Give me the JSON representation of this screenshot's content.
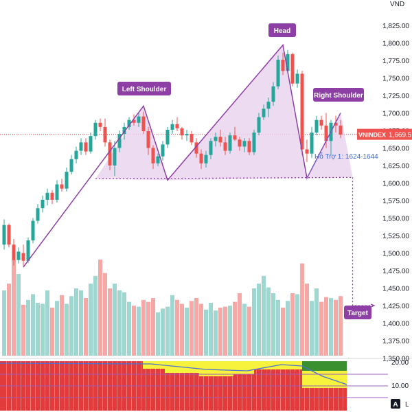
{
  "chart_data": {
    "type": "candlestick",
    "unit": "VND",
    "ticker": "VNINDEX",
    "last_price_label": "1,669.5",
    "y_ticks": [
      "1,825.00",
      "1,800.00",
      "1,775.00",
      "1,750.00",
      "1,725.00",
      "1,700.00",
      "1,675.00",
      "1,650.00",
      "1,625.00",
      "1,600.00",
      "1,575.00",
      "1,550.00",
      "1,525.00",
      "1,500.00",
      "1,475.00",
      "1,450.00",
      "1,425.00",
      "1,400.00",
      "1,375.00",
      "1,350.00"
    ],
    "ylim": [
      1350,
      1830
    ],
    "annotations": {
      "left_shoulder": "Left Shoulder",
      "head": "Head",
      "right_shoulder": "Right Shoulder",
      "target": "Target",
      "support": "Hỗ Trợ 1: 1624-1644"
    },
    "pattern": {
      "bottom": 1480,
      "left_shoulder": 1710,
      "neck_left": 1604,
      "head": 1797,
      "neck_right": 1607,
      "neckline_end": 1608,
      "target": 1423
    },
    "candles": [
      [
        1512,
        1548,
        1505,
        1540
      ],
      [
        1540,
        1542,
        1508,
        1512
      ],
      [
        1512,
        1520,
        1482,
        1490
      ],
      [
        1490,
        1508,
        1485,
        1502
      ],
      [
        1500,
        1512,
        1482,
        1489
      ],
      [
        1489,
        1522,
        1486,
        1518
      ],
      [
        1518,
        1550,
        1514,
        1546
      ],
      [
        1546,
        1570,
        1542,
        1564
      ],
      [
        1564,
        1582,
        1558,
        1576
      ],
      [
        1576,
        1592,
        1568,
        1586
      ],
      [
        1586,
        1590,
        1570,
        1576
      ],
      [
        1576,
        1604,
        1572,
        1598
      ],
      [
        1598,
        1606,
        1588,
        1592
      ],
      [
        1592,
        1622,
        1588,
        1616
      ],
      [
        1616,
        1640,
        1612,
        1634
      ],
      [
        1634,
        1652,
        1628,
        1646
      ],
      [
        1646,
        1664,
        1640,
        1658
      ],
      [
        1658,
        1664,
        1640,
        1645
      ],
      [
        1645,
        1672,
        1642,
        1667
      ],
      [
        1667,
        1690,
        1662,
        1686
      ],
      [
        1686,
        1692,
        1674,
        1680
      ],
      [
        1680,
        1692,
        1652,
        1658
      ],
      [
        1658,
        1662,
        1618,
        1625
      ],
      [
        1625,
        1660,
        1610,
        1650
      ],
      [
        1650,
        1675,
        1644,
        1670
      ],
      [
        1670,
        1686,
        1662,
        1680
      ],
      [
        1680,
        1694,
        1676,
        1690
      ],
      [
        1690,
        1698,
        1682,
        1686
      ],
      [
        1686,
        1700,
        1680,
        1695
      ],
      [
        1695,
        1702,
        1670,
        1674
      ],
      [
        1674,
        1680,
        1640,
        1650
      ],
      [
        1650,
        1654,
        1620,
        1628
      ],
      [
        1628,
        1642,
        1624,
        1638
      ],
      [
        1638,
        1660,
        1632,
        1655
      ],
      [
        1655,
        1680,
        1650,
        1676
      ],
      [
        1676,
        1690,
        1670,
        1684
      ],
      [
        1684,
        1694,
        1674,
        1678
      ],
      [
        1678,
        1680,
        1662,
        1668
      ],
      [
        1668,
        1676,
        1660,
        1670
      ],
      [
        1670,
        1674,
        1654,
        1658
      ],
      [
        1658,
        1664,
        1636,
        1642
      ],
      [
        1642,
        1648,
        1620,
        1628
      ],
      [
        1628,
        1646,
        1622,
        1640
      ],
      [
        1640,
        1664,
        1634,
        1660
      ],
      [
        1660,
        1672,
        1652,
        1666
      ],
      [
        1666,
        1676,
        1652,
        1658
      ],
      [
        1658,
        1666,
        1640,
        1646
      ],
      [
        1646,
        1672,
        1642,
        1668
      ],
      [
        1668,
        1680,
        1660,
        1662
      ],
      [
        1662,
        1666,
        1646,
        1652
      ],
      [
        1652,
        1664,
        1644,
        1660
      ],
      [
        1660,
        1664,
        1640,
        1644
      ],
      [
        1644,
        1676,
        1640,
        1672
      ],
      [
        1672,
        1700,
        1668,
        1694
      ],
      [
        1694,
        1712,
        1690,
        1706
      ],
      [
        1706,
        1722,
        1694,
        1716
      ],
      [
        1716,
        1744,
        1710,
        1738
      ],
      [
        1738,
        1782,
        1734,
        1776
      ],
      [
        1776,
        1786,
        1754,
        1760
      ],
      [
        1760,
        1790,
        1756,
        1784
      ],
      [
        1784,
        1786,
        1738,
        1742
      ],
      [
        1742,
        1762,
        1736,
        1756
      ],
      [
        1756,
        1760,
        1640,
        1648
      ],
      [
        1648,
        1662,
        1630,
        1642
      ],
      [
        1642,
        1680,
        1636,
        1672
      ],
      [
        1672,
        1696,
        1668,
        1690
      ],
      [
        1690,
        1696,
        1676,
        1682
      ],
      [
        1682,
        1700,
        1650,
        1660
      ],
      [
        1660,
        1690,
        1640,
        1686
      ],
      [
        1686,
        1696,
        1672,
        1682
      ],
      [
        1682,
        1690,
        1664,
        1669
      ]
    ],
    "volumes": [
      68,
      75,
      100,
      85,
      53,
      58,
      64,
      55,
      54,
      68,
      50,
      57,
      63,
      54,
      62,
      70,
      68,
      60,
      75,
      83,
      100,
      86,
      70,
      75,
      68,
      66,
      56,
      52,
      51,
      58,
      56,
      60,
      45,
      49,
      51,
      63,
      58,
      54,
      50,
      57,
      60,
      54,
      48,
      55,
      47,
      50,
      51,
      52,
      56,
      65,
      54,
      51,
      70,
      75,
      83,
      71,
      65,
      58,
      50,
      57,
      65,
      64,
      96,
      75,
      57,
      70,
      56,
      61,
      60,
      58,
      62
    ],
    "rsi_ticks": [
      "20.00",
      "10.00"
    ],
    "rsi_badge": "A",
    "rsi_trailing": "L"
  }
}
